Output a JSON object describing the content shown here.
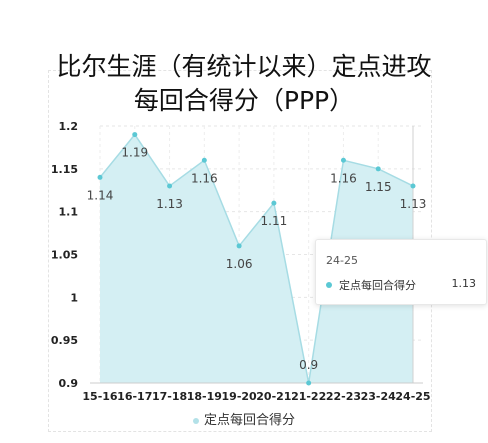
{
  "title_line1": "比尔生涯（有统计以来）定点进攻",
  "title_line2": "每回合得分（PPP）",
  "chart_data": {
    "type": "area",
    "categories": [
      "15-16",
      "16-17",
      "17-18",
      "18-19",
      "19-20",
      "20-21",
      "21-22",
      "22-23",
      "23-24",
      "24-25"
    ],
    "series": [
      {
        "name": "定点每回合得分",
        "values": [
          1.14,
          1.19,
          1.13,
          1.16,
          1.06,
          1.11,
          0.9,
          1.16,
          1.15,
          1.13
        ]
      }
    ],
    "data_labels": [
      "1.14",
      "1.19",
      "1.13",
      "1.16",
      "1.06",
      "1.11",
      "0.9",
      "1.16",
      "1.15",
      "1.13"
    ],
    "ylim": [
      0.9,
      1.2
    ],
    "yticks": [
      "0.9",
      "0.95",
      "1",
      "1.05",
      "1.1",
      "1.15",
      "1.2"
    ],
    "grid": true,
    "legend_position": "bottom",
    "colors": {
      "line": "#a6dce4",
      "fill": "#d4eff3",
      "marker": "#5bc8d4"
    }
  },
  "tooltip": {
    "title": "24-25",
    "series_name": "定点每回合得分",
    "value": "1.13"
  },
  "legend": {
    "label": "定点每回合得分"
  }
}
